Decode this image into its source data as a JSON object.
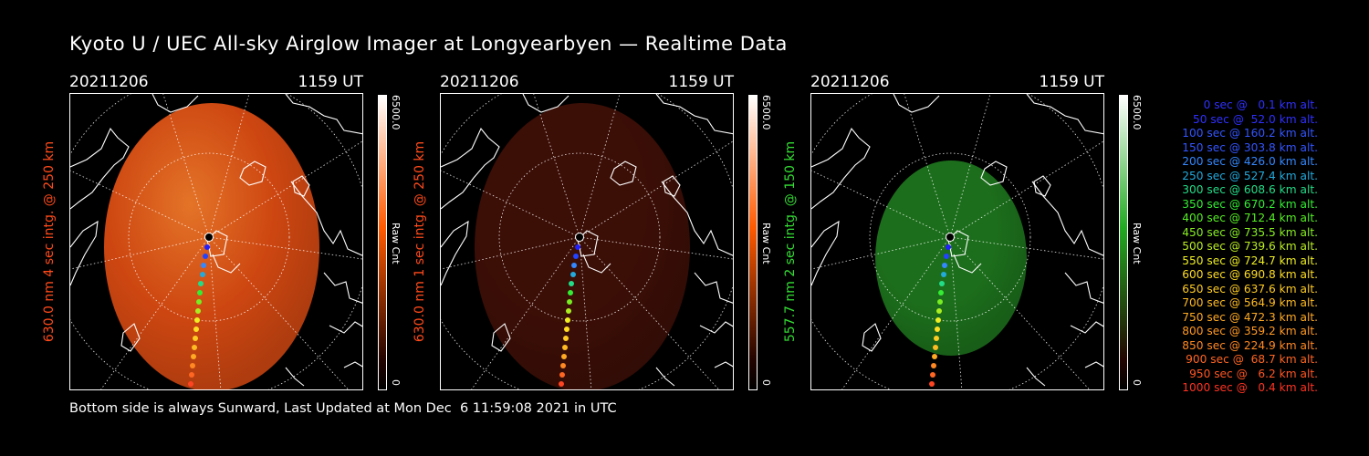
{
  "title": "Kyoto U / UEC All-sky Airglow Imager at Longyearbyen — Realtime Data",
  "panels": [
    {
      "date": "20211206",
      "time": "1159 UT",
      "side_label": "630.0 nm 4 sec intg. @ 250 km",
      "side_color": "#ff4a1a",
      "colorbar_max": "6500.0",
      "colorbar_min": "0",
      "colorbar_label": "Raw Cnt",
      "colorbar_color": "#ff5a00",
      "glow_color": "#d84a12",
      "glow_intensity": 0.95
    },
    {
      "date": "20211206",
      "time": "1159 UT",
      "side_label": "630.0 nm 1 sec intg. @ 250 km",
      "side_color": "#ff4a1a",
      "colorbar_max": "6500.0",
      "colorbar_min": "0",
      "colorbar_label": "Raw Cnt",
      "colorbar_color": "#ff5a00",
      "glow_color": "#4a1208",
      "glow_intensity": 0.8
    },
    {
      "date": "20211206",
      "time": "1159 UT",
      "side_label": "557.7 nm 2 sec intg. @ 150 km",
      "side_color": "#33dd33",
      "colorbar_max": "6500.0",
      "colorbar_min": "0",
      "colorbar_label": "Raw Cnt",
      "colorbar_color": "#22aa22",
      "glow_color": "#1f7a1f",
      "glow_intensity": 0.9
    }
  ],
  "legend": [
    {
      "text": "0 sec @   0.1 km alt.",
      "color": "#3030ff"
    },
    {
      "text": "50 sec @  52.0 km alt.",
      "color": "#3030ff"
    },
    {
      "text": "100 sec @ 160.2 km alt.",
      "color": "#3355ff"
    },
    {
      "text": "150 sec @ 303.8 km alt.",
      "color": "#3355ff"
    },
    {
      "text": "200 sec @ 426.0 km alt.",
      "color": "#3388ff"
    },
    {
      "text": "250 sec @ 527.4 km alt.",
      "color": "#22aadd"
    },
    {
      "text": "300 sec @ 608.6 km alt.",
      "color": "#22dd88"
    },
    {
      "text": "350 sec @ 670.2 km alt.",
      "color": "#33ee33"
    },
    {
      "text": "400 sec @ 712.4 km alt.",
      "color": "#55ee22"
    },
    {
      "text": "450 sec @ 735.5 km alt.",
      "color": "#88ee22"
    },
    {
      "text": "500 sec @ 739.6 km alt.",
      "color": "#bbee22"
    },
    {
      "text": "550 sec @ 724.7 km alt.",
      "color": "#eeee22"
    },
    {
      "text": "600 sec @ 690.8 km alt.",
      "color": "#ffdd22"
    },
    {
      "text": "650 sec @ 637.6 km alt.",
      "color": "#ffcc22"
    },
    {
      "text": "700 sec @ 564.9 km alt.",
      "color": "#ffbb22"
    },
    {
      "text": "750 sec @ 472.3 km alt.",
      "color": "#ffaa22"
    },
    {
      "text": "800 sec @ 359.2 km alt.",
      "color": "#ff9922"
    },
    {
      "text": "850 sec @ 224.9 km alt.",
      "color": "#ff8822"
    },
    {
      "text": "900 sec @  68.7 km alt.",
      "color": "#ff6622"
    },
    {
      "text": "950 sec @   6.2 km alt.",
      "color": "#ff5522"
    },
    {
      "text": "1000 sec @   0.4 km alt.",
      "color": "#ff3322"
    }
  ],
  "footer": "Bottom side is always Sunward, Last Updated at Mon Dec  6 11:59:08 2021 in UTC"
}
